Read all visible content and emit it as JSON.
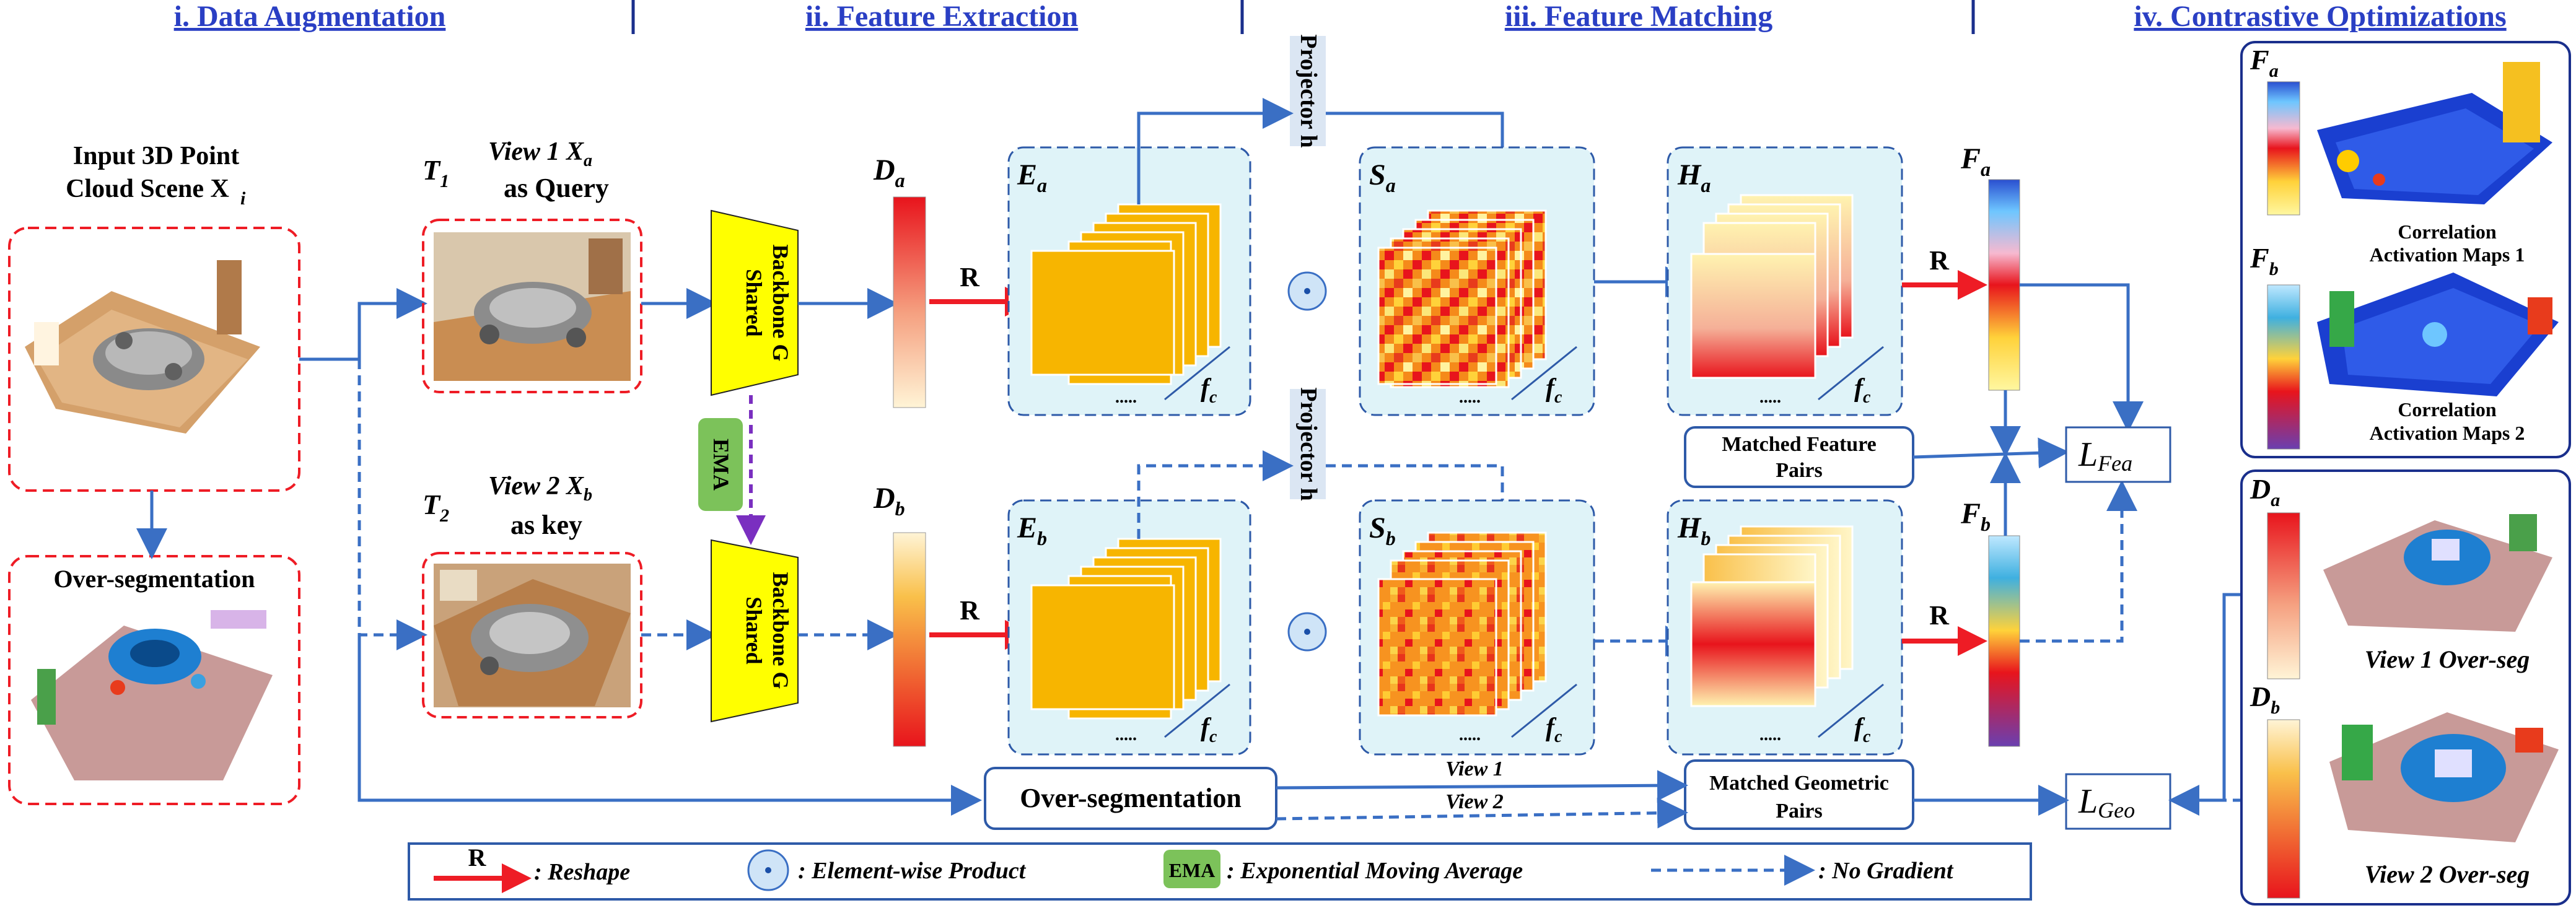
{
  "headers": {
    "h1": "i. Data Augmentation",
    "h2": "ii. Feature Extraction",
    "h3": "iii. Feature Matching",
    "h4": "iv. Contrastive Optimizations"
  },
  "input": {
    "line1": "Input 3D Point",
    "line2": "Cloud Scene X",
    "sub": "i",
    "overseg": "Over-segmentation"
  },
  "views": {
    "t1": "T",
    "t1_sub": "1",
    "view1_a": "View 1 X",
    "view1_sub": "a",
    "view1_b": "as Query",
    "t2": "T",
    "t2_sub": "2",
    "view2_a": "View 2 X",
    "view2_sub": "b",
    "view2_b": "as key"
  },
  "backbone": {
    "line1": "Shared",
    "line2": "Backbone G",
    "ema": "EMA"
  },
  "features": {
    "Da": "D",
    "Da_sub": "a",
    "Db": "D",
    "Db_sub": "b",
    "Ea": "E",
    "Ea_sub": "a",
    "Eb": "E",
    "Eb_sub": "b",
    "Sa": "S",
    "Sa_sub": "a",
    "Sb": "S",
    "Sb_sub": "b",
    "Ha": "H",
    "Ha_sub": "a",
    "Hb": "H",
    "Hb_sub": "b",
    "Fa": "F",
    "Fa_sub": "a",
    "Fb": "F",
    "Fb_sub": "b",
    "fc": "f",
    "fc_sub": "c",
    "R": "R",
    "projector": "Projector h"
  },
  "matching": {
    "feature_pairs_1": "Matched Feature",
    "feature_pairs_2": "Pairs",
    "geo_pairs_1": "Matched Geometric",
    "geo_pairs_2": "Pairs",
    "overseg_box": "Over-segmentation",
    "view1": "View 1",
    "view2": "View 2"
  },
  "losses": {
    "fea": "L",
    "fea_sub": "Fea",
    "geo": "L",
    "geo_sub": "Geo"
  },
  "right_panel": {
    "Fa": "F",
    "Fa_sub": "a",
    "Fb": "F",
    "Fb_sub": "b",
    "corr1_1": "Correlation",
    "corr1_2": "Activation Maps 1",
    "corr2_1": "Correlation",
    "corr2_2": "Activation Maps 2",
    "Da": "D",
    "Da_sub": "a",
    "Db": "D",
    "Db_sub": "b",
    "view1": "View 1 Over-seg",
    "view2": "View 2 Over-seg"
  },
  "legend": {
    "R": "R",
    "reshape": ": Reshape",
    "product": ": Element-wise Product",
    "ema": "EMA",
    "ema_desc": ": Exponential Moving Average",
    "nograd": ": No Gradient"
  },
  "colors": {
    "blue": "#3a6fc4",
    "dash_blue": "#3a6fc4",
    "red": "#ee1c25",
    "purple": "#7a2fc0",
    "yellow": "#ffff00",
    "light_panel": "#dff3f8",
    "orange": "#f7b500",
    "ema_green": "#7cc25a",
    "projector_bg": "#dbe6f3",
    "header_blue": "#2a3fc4",
    "divider": "#1a2f8c"
  }
}
